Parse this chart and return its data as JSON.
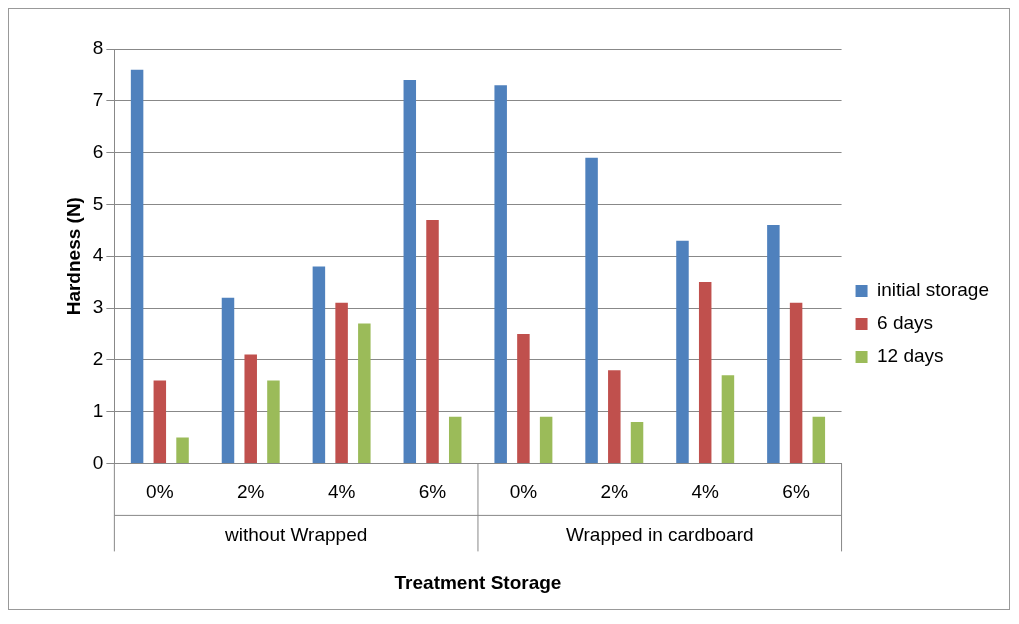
{
  "chart_data": {
    "type": "bar",
    "xlabel": "Treatment Storage",
    "ylabel": "Hardness (N)",
    "categories": [
      "0%",
      "2%",
      "4%",
      "6%",
      "0%",
      "2%",
      "4%",
      "6%"
    ],
    "annotations": [
      "without Wrapped",
      "Wrapped in cardboard"
    ],
    "series": [
      {
        "name": "initial storage",
        "color": "#4f81bd",
        "values": [
          7.6,
          3.2,
          3.8,
          7.4,
          7.3,
          5.9,
          4.3,
          4.6
        ]
      },
      {
        "name": "6 days",
        "color": "#c0504d",
        "values": [
          1.6,
          2.1,
          3.1,
          4.7,
          2.5,
          1.8,
          3.5,
          3.1
        ]
      },
      {
        "name": "12 days",
        "color": "#9bbb59",
        "values": [
          0.5,
          1.6,
          2.7,
          0.9,
          0.9,
          0.8,
          1.7,
          0.9
        ]
      }
    ],
    "ylim": [
      0,
      8
    ],
    "yticks": [
      0,
      1,
      2,
      3,
      4,
      5,
      6,
      7,
      8
    ],
    "grid": "y",
    "legend": "right"
  }
}
